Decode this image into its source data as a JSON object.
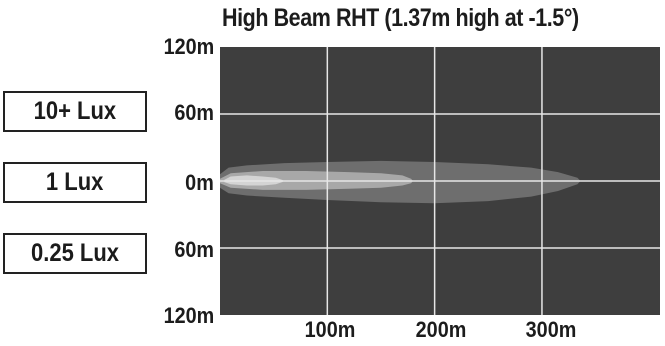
{
  "chart_data": {
    "type": "area",
    "title": "High Beam RHT (1.37m high at -1.5°)",
    "x_ticks": [
      {
        "value": 100,
        "label": "100m"
      },
      {
        "value": 200,
        "label": "200m"
      },
      {
        "value": 300,
        "label": "300m"
      }
    ],
    "y_ticks": [
      {
        "value": 120,
        "label": "120m"
      },
      {
        "value": 60,
        "label": "60m"
      },
      {
        "value": 0,
        "label": "0m"
      },
      {
        "value": -60,
        "label": "60m"
      },
      {
        "value": -120,
        "label": "120m"
      }
    ],
    "xlim": [
      0,
      410
    ],
    "ylim": [
      -120,
      120
    ],
    "grid": true,
    "legend": [
      {
        "label": "10+ Lux",
        "color": "#d4d4d4"
      },
      {
        "label": "1 Lux",
        "color": "#a8a8a8"
      },
      {
        "label": "0.25 Lux",
        "color": "#6e6e6e"
      }
    ],
    "series": [
      {
        "name": "0.25 Lux",
        "color": "#6e6e6e",
        "upper": [
          [
            0,
            6
          ],
          [
            8,
            12
          ],
          [
            25,
            14
          ],
          [
            60,
            16
          ],
          [
            100,
            17
          ],
          [
            150,
            18
          ],
          [
            200,
            17
          ],
          [
            250,
            15
          ],
          [
            290,
            12
          ],
          [
            315,
            8
          ],
          [
            333,
            3
          ],
          [
            336,
            0
          ]
        ],
        "lower": [
          [
            0,
            -6
          ],
          [
            8,
            -11
          ],
          [
            25,
            -13
          ],
          [
            60,
            -15
          ],
          [
            100,
            -17
          ],
          [
            150,
            -19
          ],
          [
            200,
            -20
          ],
          [
            250,
            -18
          ],
          [
            290,
            -14
          ],
          [
            315,
            -9
          ],
          [
            333,
            -3
          ],
          [
            336,
            0
          ]
        ]
      },
      {
        "name": "1 Lux",
        "color": "#a8a8a8",
        "upper": [
          [
            0,
            2
          ],
          [
            10,
            7
          ],
          [
            40,
            9
          ],
          [
            80,
            9
          ],
          [
            120,
            8
          ],
          [
            150,
            7
          ],
          [
            170,
            5
          ],
          [
            178,
            2
          ],
          [
            180,
            0
          ]
        ],
        "lower": [
          [
            0,
            -2
          ],
          [
            10,
            -6
          ],
          [
            40,
            -8
          ],
          [
            80,
            -8
          ],
          [
            120,
            -7
          ],
          [
            150,
            -6
          ],
          [
            170,
            -4
          ],
          [
            178,
            -2
          ],
          [
            180,
            0
          ]
        ]
      },
      {
        "name": "10+ Lux",
        "color": "#d4d4d4",
        "upper": [
          [
            4,
            1
          ],
          [
            10,
            4
          ],
          [
            25,
            5
          ],
          [
            40,
            4
          ],
          [
            52,
            3
          ],
          [
            58,
            1
          ],
          [
            60,
            0
          ]
        ],
        "lower": [
          [
            4,
            -1
          ],
          [
            10,
            -3
          ],
          [
            25,
            -4
          ],
          [
            40,
            -4
          ],
          [
            52,
            -3
          ],
          [
            58,
            -1
          ],
          [
            60,
            0
          ]
        ]
      }
    ]
  },
  "colors": {
    "plot_background": "#3e3e3e",
    "grid": "#e6e6e6"
  }
}
